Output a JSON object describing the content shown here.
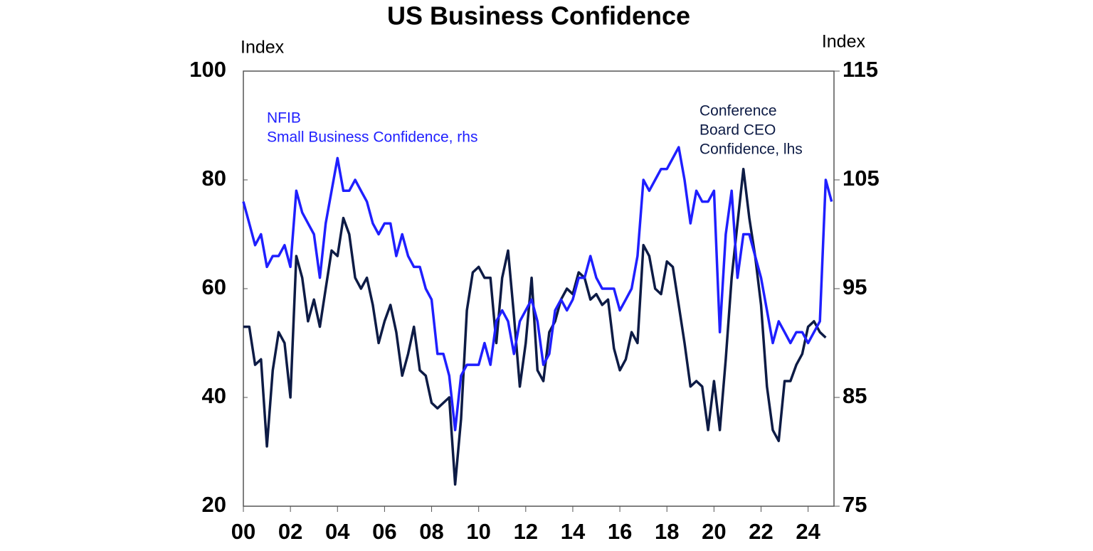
{
  "chart_data": {
    "type": "line",
    "title": "US Business Confidence",
    "y_label": "Index",
    "y2_label": "Index",
    "annotations": [
      [
        "NFIB",
        "Small Business Confidence, rhs"
      ],
      [
        "Conference",
        "Board CEO",
        "Confidence, lhs"
      ]
    ],
    "xlim": [
      2000,
      2025.1
    ],
    "xticks": [
      {
        "value": 2000,
        "label": "00"
      },
      {
        "value": 2002,
        "label": "02"
      },
      {
        "value": 2004,
        "label": "04"
      },
      {
        "value": 2006,
        "label": "06"
      },
      {
        "value": 2008,
        "label": "08"
      },
      {
        "value": 2010,
        "label": "10"
      },
      {
        "value": 2012,
        "label": "12"
      },
      {
        "value": 2014,
        "label": "14"
      },
      {
        "value": 2016,
        "label": "16"
      },
      {
        "value": 2018,
        "label": "18"
      },
      {
        "value": 2020,
        "label": "20"
      },
      {
        "value": 2022,
        "label": "22"
      },
      {
        "value": 2024,
        "label": "24"
      }
    ],
    "ylim": [
      20,
      100
    ],
    "yticks": [
      20,
      40,
      60,
      80,
      100
    ],
    "y2lim": [
      75,
      115
    ],
    "y2ticks": [
      75,
      85,
      95,
      105,
      115
    ],
    "series": [
      {
        "name": "Conference Board CEO Confidence, lhs",
        "color": "#0d1b45",
        "axis": "y",
        "x": [
          2000,
          2000.25,
          2000.5,
          2000.75,
          2001,
          2001.25,
          2001.5,
          2001.75,
          2002,
          2002.25,
          2002.5,
          2002.75,
          2003,
          2003.25,
          2003.5,
          2003.75,
          2004,
          2004.25,
          2004.5,
          2004.75,
          2005,
          2005.25,
          2005.5,
          2005.75,
          2006,
          2006.25,
          2006.5,
          2006.75,
          2007,
          2007.25,
          2007.5,
          2007.75,
          2008,
          2008.25,
          2008.5,
          2008.75,
          2009,
          2009.25,
          2009.5,
          2009.75,
          2010,
          2010.25,
          2010.5,
          2010.75,
          2011,
          2011.25,
          2011.5,
          2011.75,
          2012,
          2012.25,
          2012.5,
          2012.75,
          2013,
          2013.25,
          2013.5,
          2013.75,
          2014,
          2014.25,
          2014.5,
          2014.75,
          2015,
          2015.25,
          2015.5,
          2015.75,
          2016,
          2016.25,
          2016.5,
          2016.75,
          2017,
          2017.25,
          2017.5,
          2017.75,
          2018,
          2018.25,
          2018.5,
          2018.75,
          2019,
          2019.25,
          2019.5,
          2019.75,
          2020,
          2020.25,
          2020.5,
          2020.75,
          2021,
          2021.25,
          2021.5,
          2021.75,
          2022,
          2022.25,
          2022.5,
          2022.75,
          2023,
          2023.25,
          2023.5,
          2023.75,
          2024,
          2024.25,
          2024.5,
          2024.75
        ],
        "values": [
          53,
          53,
          46,
          47,
          31,
          45,
          52,
          50,
          40,
          66,
          62,
          54,
          58,
          53,
          60,
          67,
          66,
          73,
          70,
          62,
          60,
          62,
          57,
          50,
          54,
          57,
          52,
          44,
          48,
          53,
          45,
          44,
          39,
          38,
          39,
          40,
          24,
          36,
          56,
          63,
          64,
          62,
          62,
          50,
          62,
          67,
          55,
          42,
          50,
          62,
          45,
          43,
          52,
          54,
          58,
          60,
          59,
          63,
          62,
          58,
          59,
          57,
          58,
          49,
          45,
          47,
          52,
          50,
          68,
          66,
          60,
          59,
          65,
          64,
          57,
          50,
          42,
          43,
          42,
          34,
          43,
          34,
          47,
          62,
          72,
          82,
          73,
          66,
          57,
          42,
          34,
          32,
          43,
          43,
          46,
          48,
          53,
          54,
          52,
          51
        ]
      },
      {
        "name": "NFIB Small Business Confidence, rhs",
        "color": "#1f1fff",
        "axis": "y2",
        "x": [
          2000,
          2000.25,
          2000.5,
          2000.75,
          2001,
          2001.25,
          2001.5,
          2001.75,
          2002,
          2002.25,
          2002.5,
          2002.75,
          2003,
          2003.25,
          2003.5,
          2003.75,
          2004,
          2004.25,
          2004.5,
          2004.75,
          2005,
          2005.25,
          2005.5,
          2005.75,
          2006,
          2006.25,
          2006.5,
          2006.75,
          2007,
          2007.25,
          2007.5,
          2007.75,
          2008,
          2008.25,
          2008.5,
          2008.75,
          2009,
          2009.25,
          2009.5,
          2009.75,
          2010,
          2010.25,
          2010.5,
          2010.75,
          2011,
          2011.25,
          2011.5,
          2011.75,
          2012,
          2012.25,
          2012.5,
          2012.75,
          2013,
          2013.25,
          2013.5,
          2013.75,
          2014,
          2014.25,
          2014.5,
          2014.75,
          2015,
          2015.25,
          2015.5,
          2015.75,
          2016,
          2016.25,
          2016.5,
          2016.75,
          2017,
          2017.25,
          2017.5,
          2017.75,
          2018,
          2018.25,
          2018.5,
          2018.75,
          2019,
          2019.25,
          2019.5,
          2019.75,
          2020,
          2020.25,
          2020.5,
          2020.75,
          2021,
          2021.25,
          2021.5,
          2021.75,
          2022,
          2022.25,
          2022.5,
          2022.75,
          2023,
          2023.25,
          2023.5,
          2023.75,
          2024,
          2024.25,
          2024.5,
          2024.75,
          2025
        ],
        "values": [
          103,
          101,
          99,
          100,
          97,
          98,
          98,
          99,
          97,
          104,
          102,
          101,
          100,
          96,
          101,
          104,
          107,
          104,
          104,
          105,
          104,
          103,
          101,
          100,
          101,
          101,
          98,
          100,
          98,
          97,
          97,
          95,
          94,
          89,
          89,
          87,
          82,
          87,
          88,
          88,
          88,
          90,
          88,
          92,
          93,
          92,
          89,
          92,
          93,
          94,
          92,
          88,
          89,
          93,
          94,
          93,
          94,
          96,
          96,
          98,
          96,
          95,
          95,
          95,
          93,
          94,
          95,
          98,
          105,
          104,
          105,
          106,
          106,
          107,
          108,
          105,
          101,
          104,
          103,
          103,
          104,
          91,
          100,
          104,
          96,
          100,
          100,
          98,
          96,
          93,
          90,
          92,
          91,
          90,
          91,
          91,
          90,
          91,
          92,
          105,
          103
        ]
      }
    ]
  }
}
